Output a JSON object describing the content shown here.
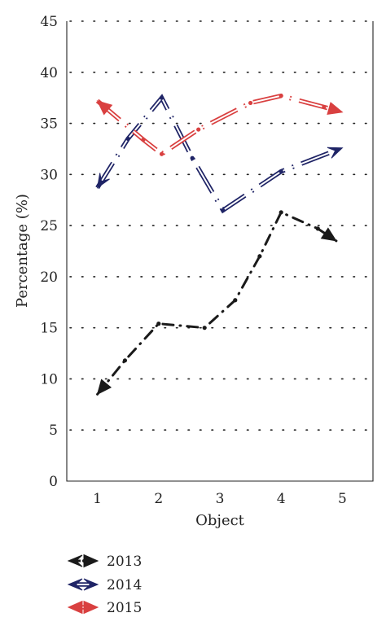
{
  "chart_data": {
    "type": "line",
    "xlabel": "Object",
    "ylabel": "Percentage (%)",
    "ylim": [
      0,
      45
    ],
    "xlim": [
      0.5,
      5.5
    ],
    "xticks": [
      1,
      2,
      3,
      4,
      5
    ],
    "yticks": [
      0,
      5,
      10,
      15,
      20,
      25,
      30,
      35,
      40,
      45
    ],
    "grid": "horizontal dotted",
    "legend_position": "bottom-left",
    "series": [
      {
        "name": "2013",
        "color": "#1a1a1a",
        "line_style": "dash-dot with arrowheads",
        "points": [
          [
            1,
            8.5
          ],
          [
            1.45,
            11.8
          ],
          [
            2,
            15.4
          ],
          [
            2.75,
            15.0
          ],
          [
            3.25,
            17.7
          ],
          [
            3.65,
            22.0
          ],
          [
            4,
            26.3
          ],
          [
            4.6,
            24.7
          ],
          [
            4.9,
            23.5
          ]
        ]
      },
      {
        "name": "2014",
        "color": "#1f2466",
        "line_style": "double-line dash with arrowheads",
        "points": [
          [
            1,
            28.7
          ],
          [
            1.5,
            33.5
          ],
          [
            2.05,
            37.5
          ],
          [
            2.55,
            31.6
          ],
          [
            3.05,
            26.5
          ],
          [
            4,
            30.3
          ],
          [
            5,
            32.6
          ]
        ]
      },
      {
        "name": "2015",
        "color": "#d94040",
        "line_style": "double-line dash with arrowheads",
        "points": [
          [
            1,
            37.2
          ],
          [
            1.75,
            33.4
          ],
          [
            2.05,
            32.0
          ],
          [
            2.65,
            34.4
          ],
          [
            3.5,
            37.0
          ],
          [
            4,
            37.7
          ],
          [
            4.7,
            36.6
          ],
          [
            5,
            36.1
          ]
        ]
      }
    ]
  }
}
